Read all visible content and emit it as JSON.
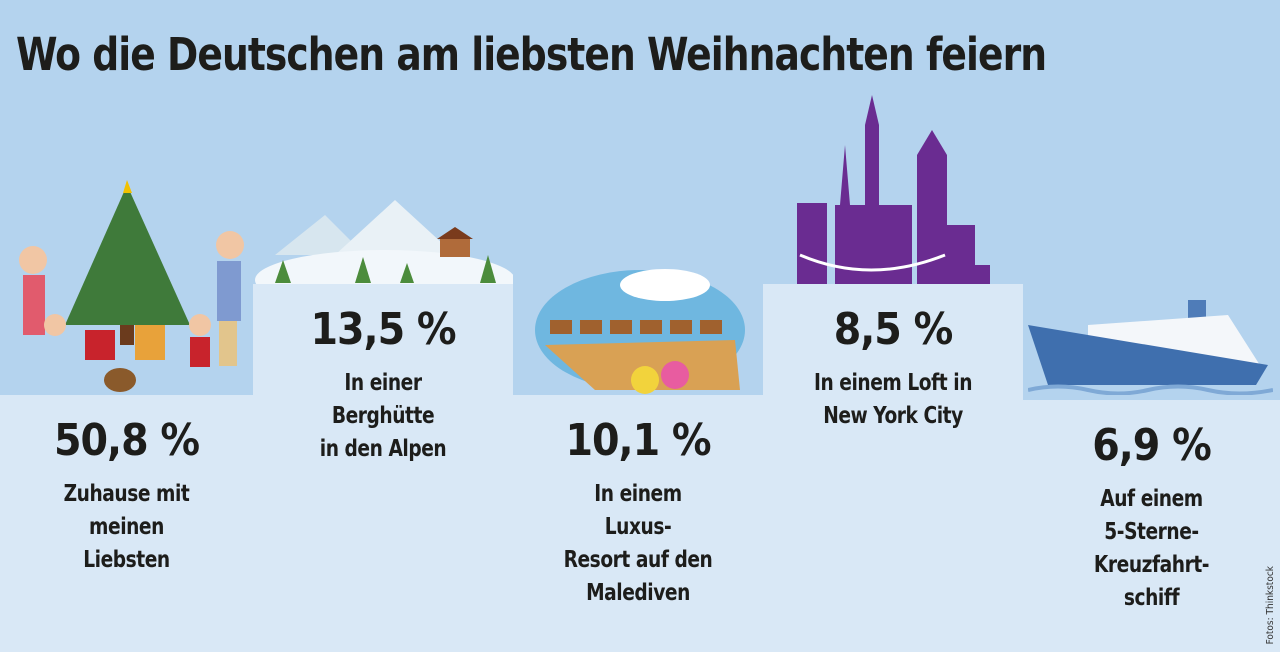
{
  "title": "Wo die Deutschen am liebsten Weihnachten feiern",
  "credit": "Fotos: Thinkstock",
  "colors": {
    "background": "#b4d3ee",
    "podium": "#d9e8f6",
    "text": "#1d1d1b"
  },
  "chart_data": {
    "type": "bar",
    "title": "Wo die Deutschen am liebsten Weihnachten feiern",
    "categories": [
      "Zuhause mit meinen Liebsten",
      "In einer Berghütte in den Alpen",
      "In einem Luxus-Resort auf den Malediven",
      "In einem Loft in New York City",
      "Auf einem 5-Sterne-Kreuzfahrtschiff"
    ],
    "values": [
      50.8,
      13.5,
      10.1,
      8.5,
      6.9
    ],
    "unit": "%",
    "items": [
      {
        "value_label": "50,8 %",
        "lines": [
          "Zuhause mit",
          "meinen",
          "Liebsten"
        ],
        "icon": "family-christmas-tree-icon"
      },
      {
        "value_label": "13,5 %",
        "lines": [
          "In einer",
          "Berghütte",
          "in den Alpen"
        ],
        "icon": "mountain-hut-icon"
      },
      {
        "value_label": "10,1 %",
        "lines": [
          "In einem",
          "Luxus-",
          "Resort auf den",
          "Malediven"
        ],
        "icon": "maldives-resort-icon"
      },
      {
        "value_label": "8,5 %",
        "lines": [
          "In einem Loft in",
          "New York City"
        ],
        "icon": "new-york-skyline-icon"
      },
      {
        "value_label": "6,9 %",
        "lines": [
          "Auf einem",
          "5-Sterne-",
          "Kreuzfahrt-",
          "schiff"
        ],
        "icon": "cruise-ship-icon"
      }
    ]
  }
}
